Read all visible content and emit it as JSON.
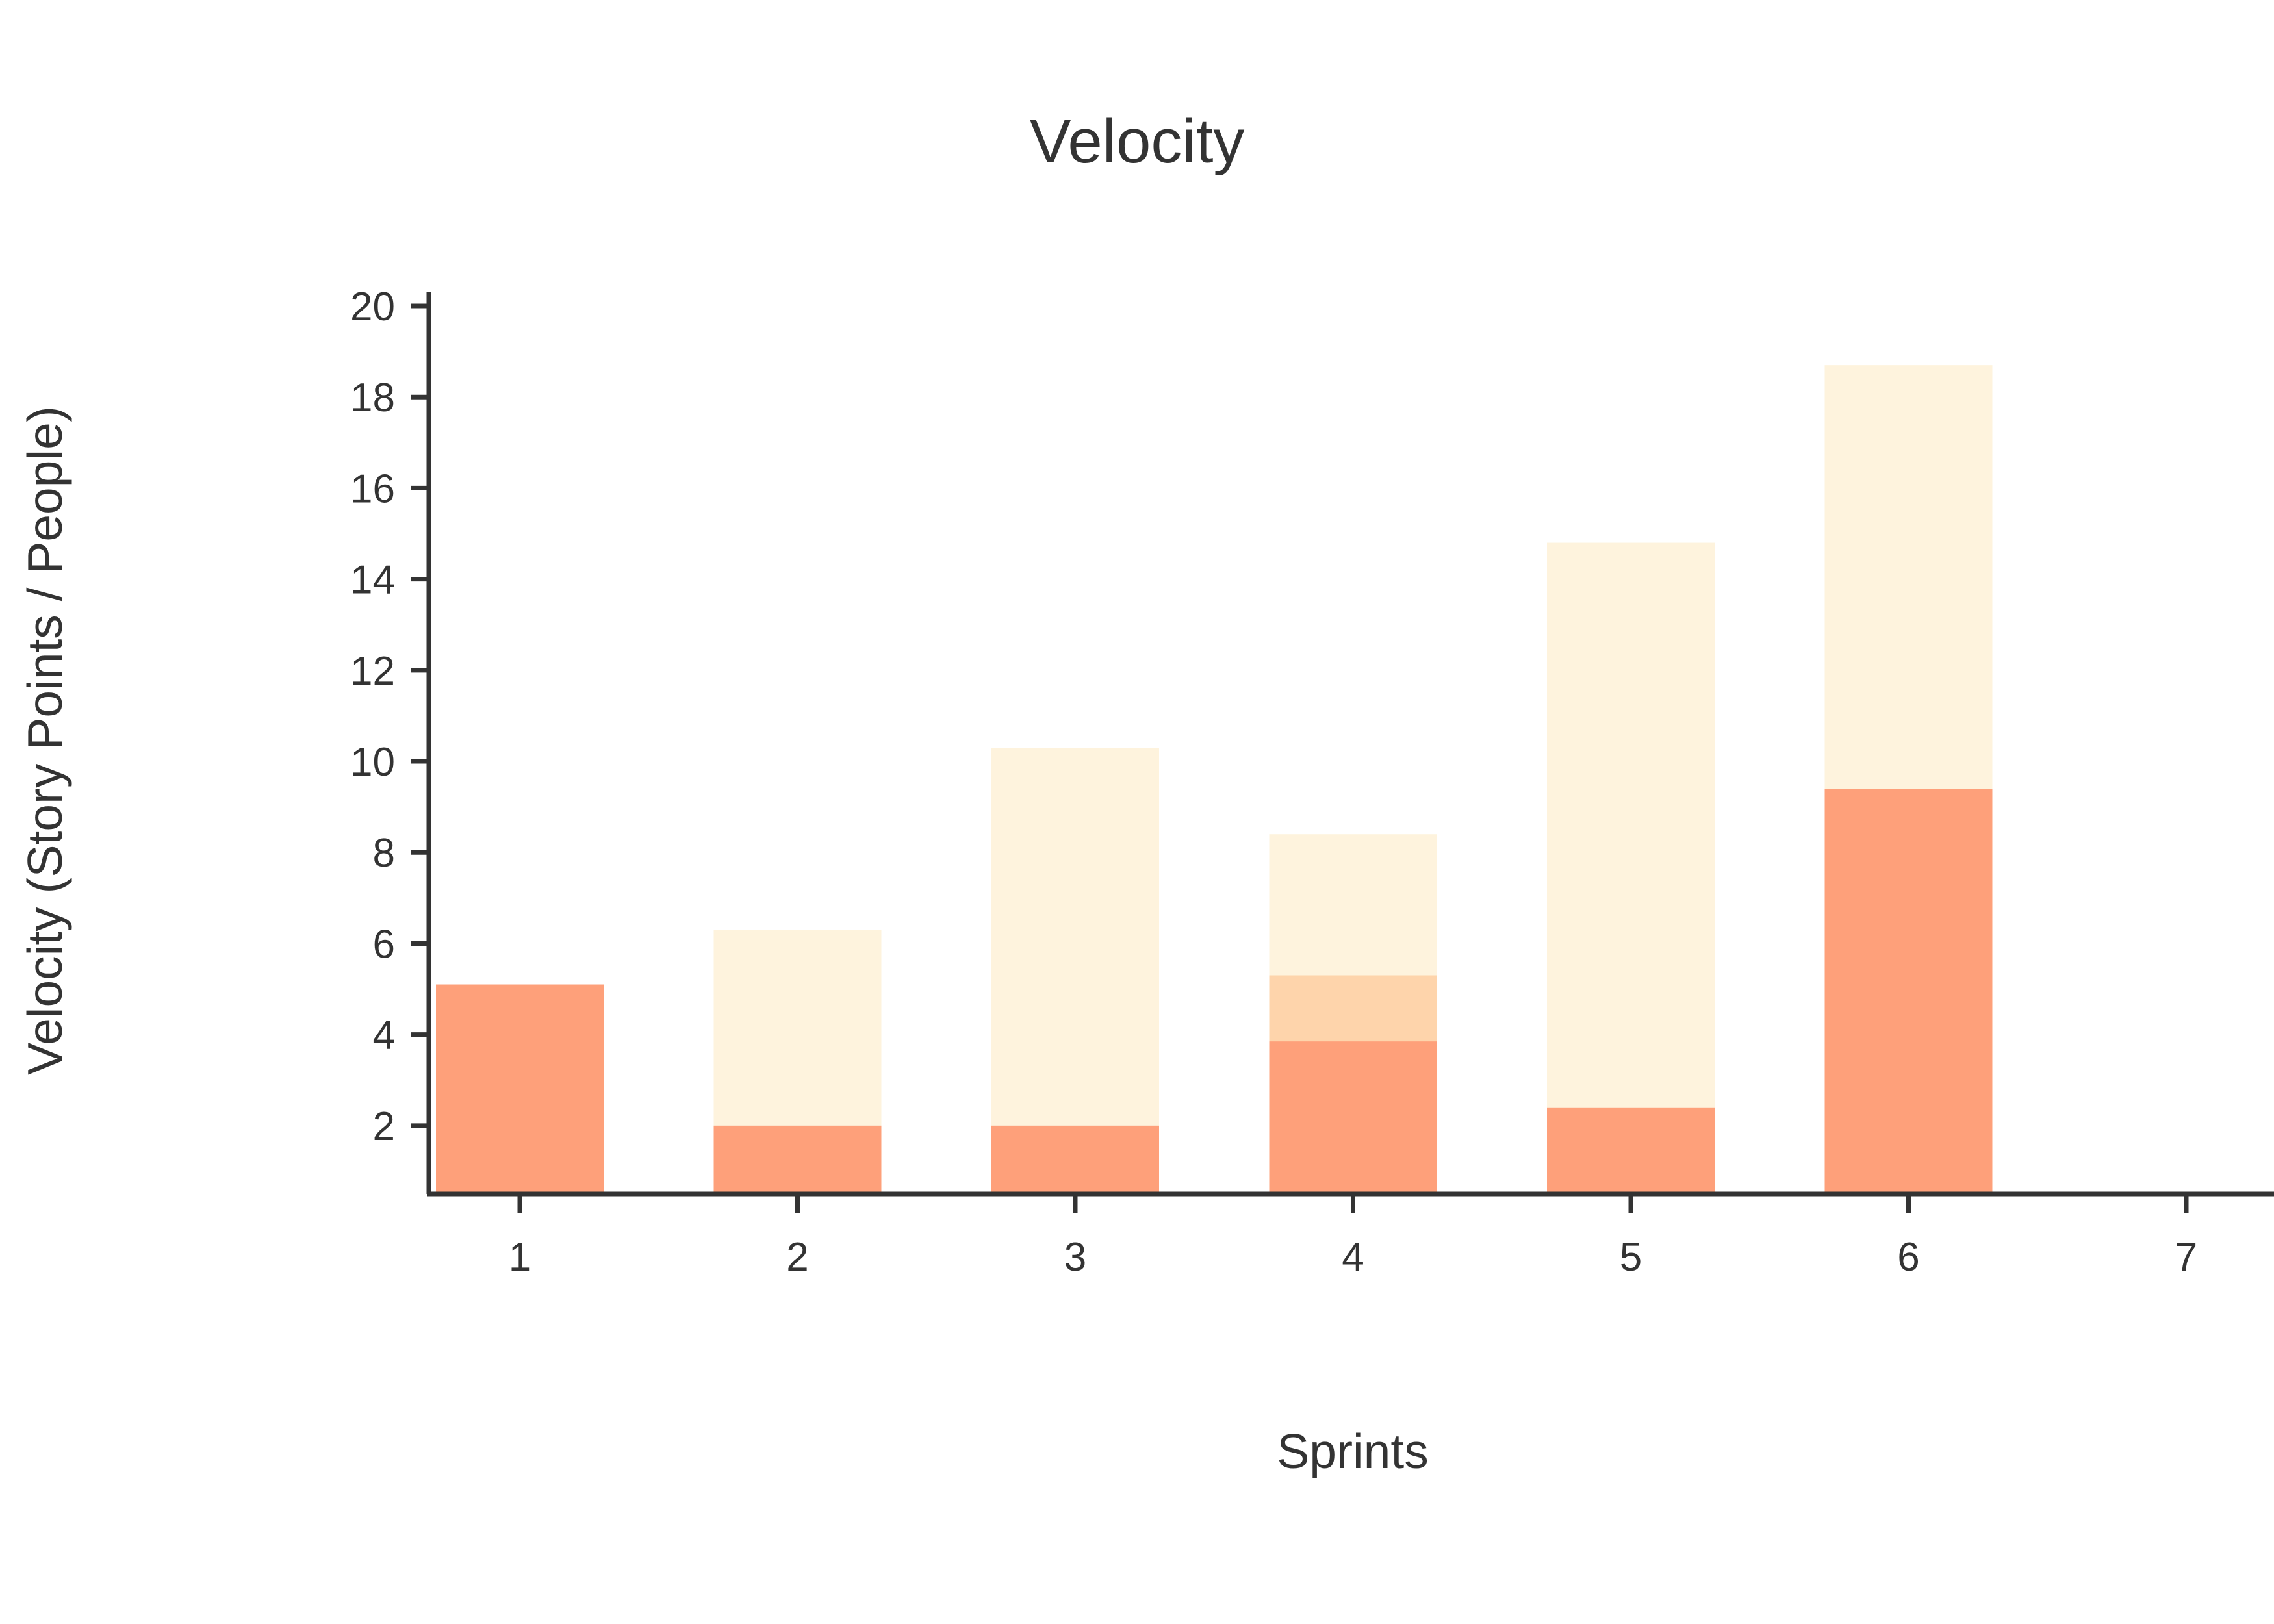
{
  "chart_data": {
    "type": "bar",
    "title": "Velocity",
    "xlabel": "Sprints",
    "ylabel": "Velocity (Story Points / People)",
    "categories": [
      "1",
      "2",
      "3",
      "4",
      "5",
      "6",
      "7"
    ],
    "ylim": [
      0.5,
      20.3
    ],
    "yticks": [
      2,
      4,
      6,
      8,
      10,
      12,
      14,
      16,
      18,
      20
    ],
    "grid": false,
    "legend": "none",
    "series": [
      {
        "values": [
          5.1,
          6.3,
          10.3,
          8.4,
          14.8,
          18.7,
          null
        ],
        "color": "#fef3dd"
      },
      {
        "values": [
          null,
          null,
          null,
          5.3,
          null,
          null,
          null
        ],
        "color": "#fed4ab"
      },
      {
        "values": [
          5.1,
          2.0,
          2.0,
          3.85,
          2.4,
          9.4,
          null
        ],
        "color": "#fea07a"
      }
    ]
  }
}
